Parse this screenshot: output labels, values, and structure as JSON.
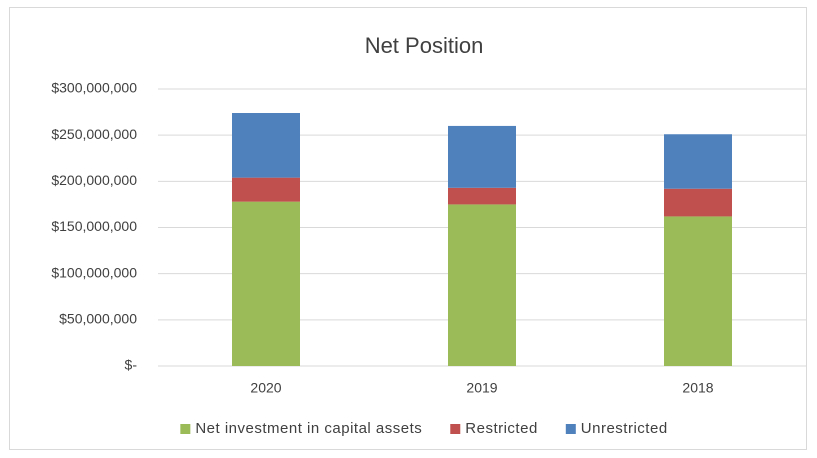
{
  "chart_data": {
    "type": "stacked_bar",
    "title": "Net Position",
    "categories": [
      "2020",
      "2019",
      "2018"
    ],
    "series": [
      {
        "name": "Net investment in capital assets",
        "color": "#9bbb59",
        "values": [
          178000000,
          175000000,
          162000000
        ]
      },
      {
        "name": "Restricted",
        "color": "#c0504d",
        "values": [
          26000000,
          18000000,
          30000000
        ]
      },
      {
        "name": "Unrestricted",
        "color": "#4f81bd",
        "values": [
          70000000,
          67000000,
          59000000
        ]
      }
    ],
    "ylim": [
      0,
      300000000
    ],
    "yticks": [
      {
        "value": 0,
        "label": "$-"
      },
      {
        "value": 50000000,
        "label": "$50,000,000"
      },
      {
        "value": 100000000,
        "label": "$100,000,000"
      },
      {
        "value": 150000000,
        "label": "$150,000,000"
      },
      {
        "value": 200000000,
        "label": "$200,000,000"
      },
      {
        "value": 250000000,
        "label": "$250,000,000"
      },
      {
        "value": 300000000,
        "label": "$300,000,000"
      }
    ],
    "grid": true,
    "legend": "bottom"
  }
}
